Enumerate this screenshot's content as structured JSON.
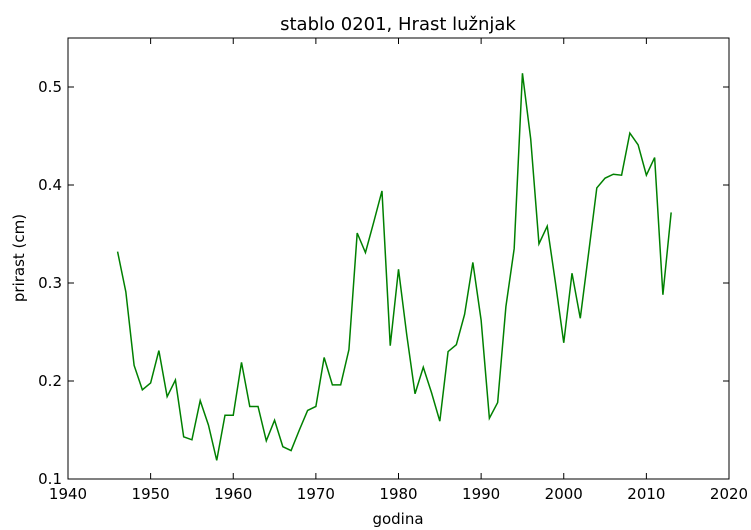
{
  "chart_data": {
    "type": "line",
    "title": "stablo 0201, Hrast lužnjak",
    "xlabel": "godina",
    "ylabel": "prirast (cm)",
    "x": [
      1946,
      1947,
      1948,
      1949,
      1950,
      1951,
      1952,
      1953,
      1954,
      1955,
      1956,
      1957,
      1958,
      1959,
      1960,
      1961,
      1962,
      1963,
      1964,
      1965,
      1966,
      1967,
      1968,
      1969,
      1970,
      1971,
      1972,
      1973,
      1974,
      1975,
      1976,
      1977,
      1978,
      1979,
      1980,
      1981,
      1982,
      1983,
      1984,
      1985,
      1986,
      1987,
      1988,
      1989,
      1990,
      1991,
      1992,
      1993,
      1994,
      1995,
      1996,
      1997,
      1998,
      1999,
      2000,
      2001,
      2002,
      2003,
      2004,
      2005,
      2006,
      2007,
      2008,
      2009,
      2010,
      2011,
      2012,
      2013
    ],
    "series": [
      {
        "color": "#008000",
        "values": [
          0.332,
          0.291,
          0.216,
          0.191,
          0.198,
          0.231,
          0.184,
          0.201,
          0.143,
          0.14,
          0.18,
          0.155,
          0.119,
          0.165,
          0.165,
          0.219,
          0.174,
          0.174,
          0.139,
          0.16,
          0.133,
          0.129,
          0.15,
          0.17,
          0.174,
          0.224,
          0.196,
          0.196,
          0.232,
          0.351,
          0.331,
          0.362,
          0.394,
          0.236,
          0.314,
          0.247,
          0.187,
          0.214,
          0.188,
          0.159,
          0.23,
          0.237,
          0.268,
          0.321,
          0.262,
          0.162,
          0.178,
          0.276,
          0.335,
          0.514,
          0.447,
          0.34,
          0.358,
          0.3,
          0.239,
          0.31,
          0.264,
          0.33,
          0.397,
          0.407,
          0.411,
          0.41,
          0.453,
          0.441,
          0.41,
          0.428,
          0.288,
          0.372
        ]
      }
    ],
    "xlim": [
      1940,
      2020
    ],
    "xticks": [
      1940,
      1950,
      1960,
      1970,
      1980,
      1990,
      2000,
      2010,
      2020
    ],
    "ylim": [
      0.1,
      0.55
    ],
    "yticks": [
      0.1,
      0.2,
      0.3,
      0.4,
      0.5
    ]
  }
}
